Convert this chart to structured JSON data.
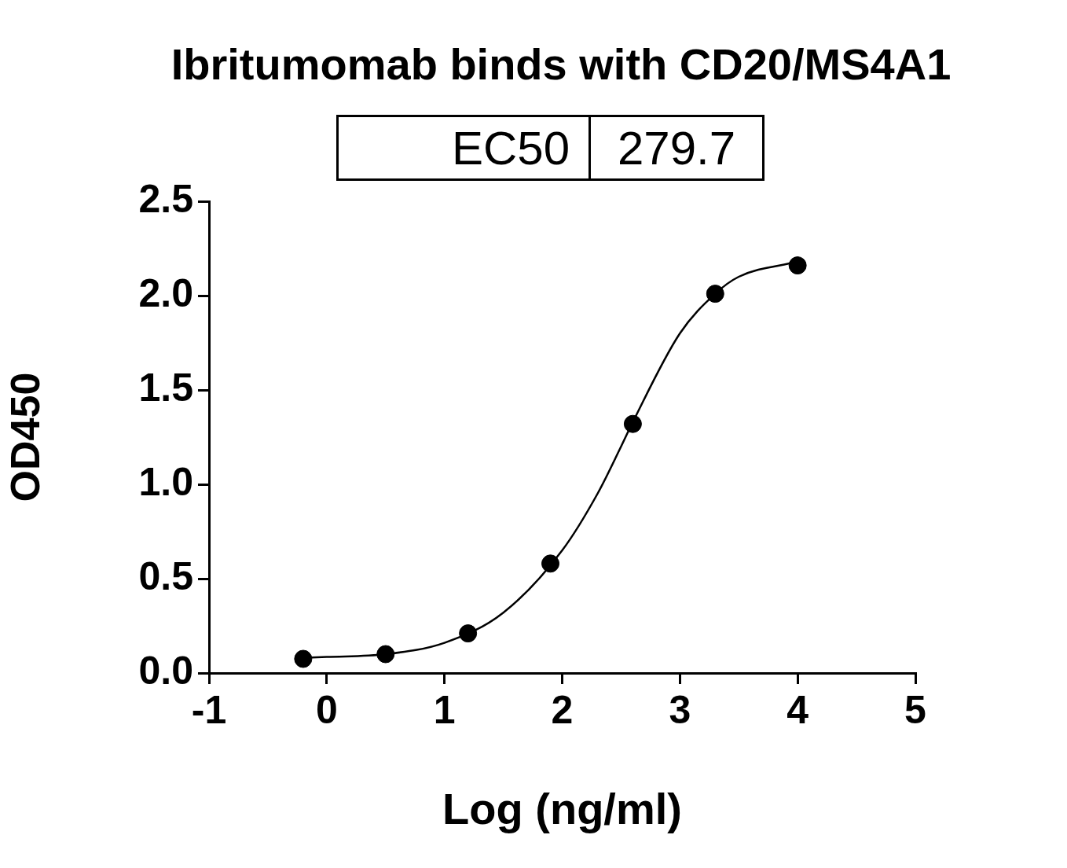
{
  "chart_data": {
    "type": "scatter",
    "title": "Ibritumomab binds with CD20/MS4A1",
    "xlabel": "Log (ng/ml)",
    "ylabel": "OD450",
    "annotations": [
      "EC50",
      "279.7"
    ],
    "series": [
      {
        "type": "scatter",
        "color": "#000000",
        "marker": "circle",
        "x": [
          -0.2,
          0.5,
          1.2,
          1.9,
          2.6,
          3.3,
          4.0
        ],
        "values": [
          0.075,
          0.1,
          0.21,
          0.58,
          1.32,
          2.01,
          2.16
        ]
      },
      {
        "type": "line",
        "color": "#000000",
        "marker": "none",
        "x": [
          -0.2,
          0,
          0.5,
          1,
          1.5,
          2,
          2.3,
          2.5,
          2.6,
          3,
          3.3,
          3.5,
          4
        ],
        "values": [
          0.08,
          0.085,
          0.1,
          0.16,
          0.32,
          0.65,
          0.95,
          1.2,
          1.33,
          1.8,
          2.01,
          2.1,
          2.18
        ]
      }
    ],
    "xlim": [
      -1,
      5
    ],
    "xticks": [
      -1,
      0,
      1,
      2,
      3,
      4,
      5
    ],
    "ylim": [
      0,
      2.5
    ],
    "yticks": [
      {
        "value": 0,
        "label": "0.0"
      },
      {
        "value": 0.5,
        "label": "0.5"
      },
      {
        "value": 1,
        "label": "1.0"
      },
      {
        "value": 1.5,
        "label": "1.5"
      },
      {
        "value": 2,
        "label": "2.0"
      },
      {
        "value": 2.5,
        "label": "2.5"
      }
    ],
    "grid": false,
    "legend": false
  }
}
